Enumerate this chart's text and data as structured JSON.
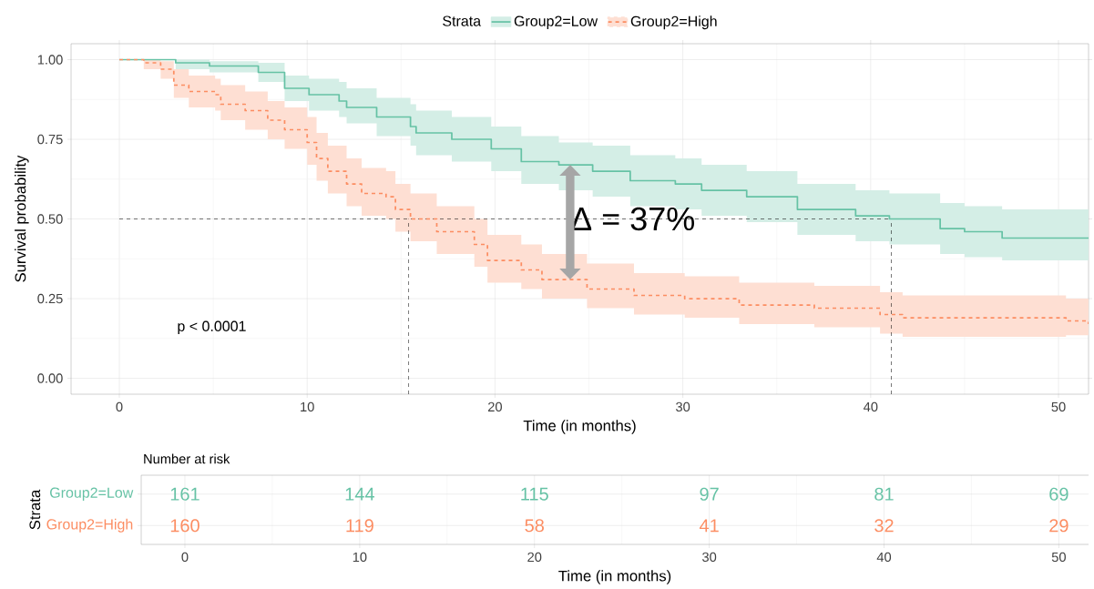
{
  "chart_data": [
    {
      "type": "step",
      "xlabel": "Time (in months)",
      "ylabel": "Survival probability",
      "legend_title": "Strata",
      "legend": "top",
      "grid": true,
      "xlim": [
        -2.57,
        51.6
      ],
      "ylim": [
        -0.05,
        1.05
      ],
      "xticks": [
        0,
        10,
        20,
        30,
        40,
        50
      ],
      "yticks": [
        {
          "value": 0,
          "label": "0.00"
        },
        {
          "value": 0.25,
          "label": "0.25"
        },
        {
          "value": 0.5,
          "label": "0.50"
        },
        {
          "value": 0.75,
          "label": "0.75"
        },
        {
          "value": 1,
          "label": "1.00"
        }
      ],
      "series": [
        {
          "name": "Group2=Low",
          "color": "#66c2a5",
          "line_style": "solid",
          "x": [
            0,
            3.0,
            4.8,
            7.4,
            8.8,
            10.1,
            11.7,
            12.1,
            13.7,
            15.5,
            15.8,
            17.7,
            19.8,
            21.4,
            23.4,
            25.2,
            27.2,
            29.6,
            31.0,
            33.4,
            36.1,
            39.2,
            41.0,
            43.7,
            45.0,
            47.0,
            51.6
          ],
          "values": [
            1,
            0.99,
            0.98,
            0.96,
            0.91,
            0.89,
            0.87,
            0.85,
            0.82,
            0.79,
            0.77,
            0.75,
            0.72,
            0.68,
            0.67,
            0.65,
            0.62,
            0.61,
            0.59,
            0.57,
            0.53,
            0.51,
            0.5,
            0.47,
            0.46,
            0.44,
            0.44
          ],
          "lower": [
            1,
            0.97,
            0.96,
            0.93,
            0.87,
            0.84,
            0.82,
            0.8,
            0.76,
            0.73,
            0.7,
            0.68,
            0.65,
            0.61,
            0.59,
            0.57,
            0.54,
            0.53,
            0.51,
            0.49,
            0.45,
            0.43,
            0.42,
            0.39,
            0.38,
            0.37,
            0.36
          ],
          "upper": [
            1,
            1,
            0.995,
            0.99,
            0.95,
            0.94,
            0.93,
            0.91,
            0.88,
            0.86,
            0.84,
            0.82,
            0.79,
            0.76,
            0.74,
            0.73,
            0.7,
            0.69,
            0.67,
            0.65,
            0.61,
            0.59,
            0.58,
            0.55,
            0.54,
            0.53,
            0.53
          ]
        },
        {
          "name": "Group2=High",
          "color": "#fc8d62",
          "line_style": "dashed",
          "x": [
            0,
            1.3,
            2.2,
            2.9,
            3.7,
            5.1,
            5.4,
            6.7,
            7.9,
            8.8,
            10.0,
            10.5,
            11.1,
            12.1,
            12.9,
            14.2,
            14.7,
            15.5,
            16.9,
            18.9,
            19.6,
            21.4,
            22.5,
            24.9,
            27.4,
            30.1,
            33.0,
            37.0,
            40.5,
            41.7,
            50.4,
            51.6
          ],
          "values": [
            1,
            0.99,
            0.97,
            0.92,
            0.9,
            0.89,
            0.86,
            0.84,
            0.81,
            0.78,
            0.74,
            0.69,
            0.65,
            0.61,
            0.58,
            0.57,
            0.53,
            0.5,
            0.46,
            0.42,
            0.37,
            0.34,
            0.31,
            0.28,
            0.26,
            0.25,
            0.23,
            0.22,
            0.2,
            0.19,
            0.18,
            0.17
          ],
          "lower": [
            1,
            0.97,
            0.94,
            0.88,
            0.85,
            0.84,
            0.81,
            0.78,
            0.75,
            0.72,
            0.67,
            0.62,
            0.58,
            0.54,
            0.51,
            0.5,
            0.46,
            0.43,
            0.39,
            0.35,
            0.3,
            0.28,
            0.25,
            0.22,
            0.2,
            0.19,
            0.17,
            0.16,
            0.14,
            0.13,
            0.135,
            0.12
          ],
          "upper": [
            1,
            1,
            0.995,
            0.97,
            0.95,
            0.94,
            0.92,
            0.9,
            0.87,
            0.85,
            0.82,
            0.77,
            0.73,
            0.69,
            0.66,
            0.65,
            0.61,
            0.58,
            0.54,
            0.5,
            0.45,
            0.42,
            0.39,
            0.36,
            0.33,
            0.32,
            0.3,
            0.29,
            0.27,
            0.26,
            0.25,
            0.25
          ]
        }
      ],
      "ref_lines": [
        {
          "axis": "y",
          "value": 0.5,
          "color": "#000000",
          "line_style": "dashed"
        },
        {
          "axis": "x",
          "value": 15.4,
          "color": "#000000",
          "line_style": "dashed"
        },
        {
          "axis": "x",
          "value": 41.1,
          "color": "#000000",
          "line_style": "dashed"
        }
      ],
      "annotations": [
        "p < 0.0001",
        {
          "text": "Δ = 37%",
          "x": 24,
          "y": 0.5
        }
      ]
    },
    {
      "type": "heatmap",
      "title": "Number at risk",
      "xlabel": "Time (in months)",
      "ylabel": "Strata",
      "grid": true,
      "data_labels": true,
      "categories": [
        "0",
        "10",
        "20",
        "30",
        "40",
        "50"
      ],
      "y_categories": [
        "Group2=Low",
        "Group2=High"
      ],
      "colors": [
        "#66c2a5",
        "#fc8d62"
      ],
      "cells": [
        [
          161,
          144,
          115,
          97,
          81,
          69
        ],
        [
          160,
          119,
          58,
          41,
          32,
          29
        ]
      ]
    }
  ]
}
